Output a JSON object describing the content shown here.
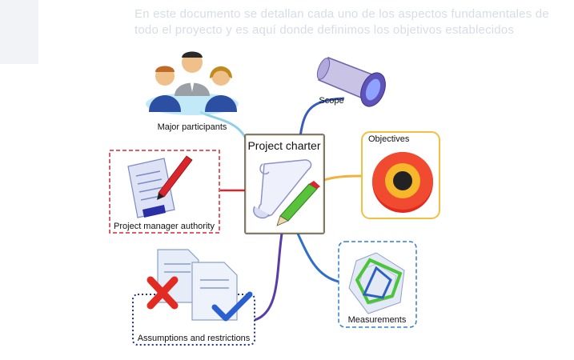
{
  "background": {
    "line1": "En este documento se detallan cada uno de los aspectos fundamentales de",
    "line2": "todo el proyecto y es aquí donde definimos los objetivos establecidos"
  },
  "diagram": {
    "center": "Project charter",
    "nodes": {
      "participants": "Major participants",
      "scope": "Scope",
      "objectives": "Objectives",
      "authority": "Project manager authority",
      "measurements": "Measurements",
      "assumptions": "Assumptions and restrictions"
    }
  },
  "colors": {
    "participants_line": "#8fd0e8",
    "scope_line": "#3a5bb8",
    "objectives_line": "#f1b23b",
    "authority_line": "#d9262c",
    "measurements_line": "#2f6fc9",
    "assumptions_line": "#5a3ca8",
    "objectives_border": "#f0c040",
    "authority_border": "#d9262c",
    "measurements_border": "#2f7fd0",
    "assumptions_border": "#1c2f9a"
  }
}
